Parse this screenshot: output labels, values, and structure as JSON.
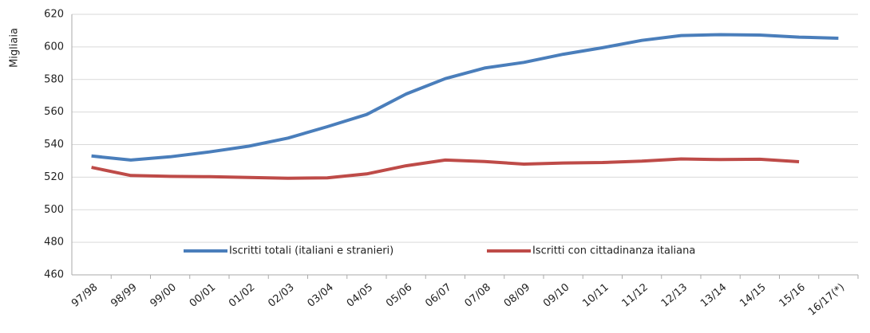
{
  "chart_data": {
    "type": "line",
    "y_label": "Migliaia",
    "categories": [
      "97/98",
      "98/99",
      "99/00",
      "00/01",
      "01/02",
      "02/03",
      "03/04",
      "04/05",
      "05/06",
      "06/07",
      "07/08",
      "08/09",
      "09/10",
      "10/11",
      "11/12",
      "12/13",
      "13/14",
      "14/15",
      "15/16",
      "16/17(*)"
    ],
    "series": [
      {
        "name": "Iscritti totali (italiani e stranieri)",
        "color": "#4a7ebb",
        "values": [
          533,
          530.5,
          532.5,
          535.5,
          539,
          544,
          551,
          558.5,
          571,
          580.5,
          587,
          590.5,
          595.5,
          599.5,
          604,
          607,
          607.5,
          607.3,
          606,
          605.3
        ]
      },
      {
        "name": "Iscritti con cittadinanza italiana",
        "color": "#be4b48",
        "values": [
          526,
          521,
          520.5,
          520.3,
          519.8,
          519.3,
          519.6,
          522,
          527,
          530.5,
          529.6,
          528,
          528.7,
          529,
          529.8,
          531.2,
          530.8,
          531,
          529.5,
          null
        ]
      }
    ],
    "ylim": [
      460,
      620
    ],
    "yticks": [
      460,
      480,
      500,
      520,
      540,
      560,
      580,
      600,
      620
    ],
    "grid": true,
    "legend": "bottom"
  }
}
